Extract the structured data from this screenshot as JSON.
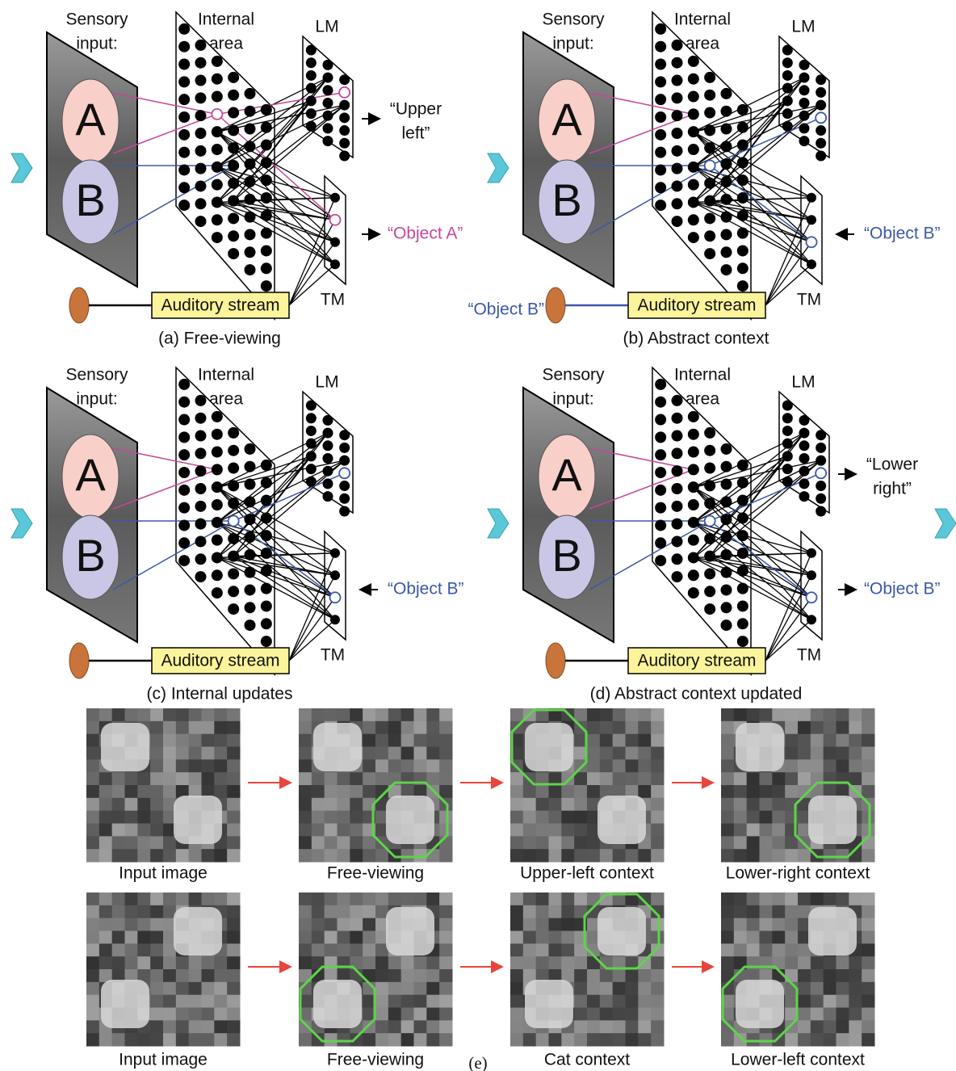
{
  "ellipse_labels": [
    "A",
    "B"
  ],
  "panels": [
    {
      "sensory": [
        "Sensory",
        "input:"
      ],
      "internal": [
        "Internal",
        "area"
      ],
      "lm": "LM",
      "tm": "TM",
      "auditory": "Auditory stream",
      "caption": "(a) Free-viewing",
      "lm_output": [
        "“Upper",
        "left”"
      ],
      "tm_output": "“Object A”",
      "highlight_color": "#c4479b"
    },
    {
      "sensory": [
        "Sensory",
        "input:"
      ],
      "internal": [
        "Internal",
        "area"
      ],
      "lm": "LM",
      "tm": "TM",
      "auditory": "Auditory stream",
      "caption": "(b) Abstract context",
      "tm_input": "“Object B”",
      "audio_input": "“Object B”",
      "highlight_color": "#3b58a8"
    },
    {
      "sensory": [
        "Sensory",
        "input:"
      ],
      "internal": [
        "Internal",
        "area"
      ],
      "lm": "LM",
      "tm": "TM",
      "auditory": "Auditory stream",
      "caption": "(c) Internal updates",
      "tm_input": "“Object B”",
      "highlight_color": "#3b58a8"
    },
    {
      "sensory": [
        "Sensory",
        "input:"
      ],
      "internal": [
        "Internal",
        "area"
      ],
      "lm": "LM",
      "tm": "TM",
      "auditory": "Auditory stream",
      "caption": "(d) Abstract context updated",
      "lm_output": [
        "“Lower",
        "right”"
      ],
      "tm_output": "“Object B”",
      "highlight_color": "#3b58a8"
    }
  ],
  "examples": {
    "rows": [
      [
        "Input image",
        "Free-viewing",
        "Upper-left context",
        "Lower-right context"
      ],
      [
        "Input image",
        "Free-viewing",
        "Cat context",
        "Lower-left context"
      ]
    ],
    "label": "(e)"
  }
}
